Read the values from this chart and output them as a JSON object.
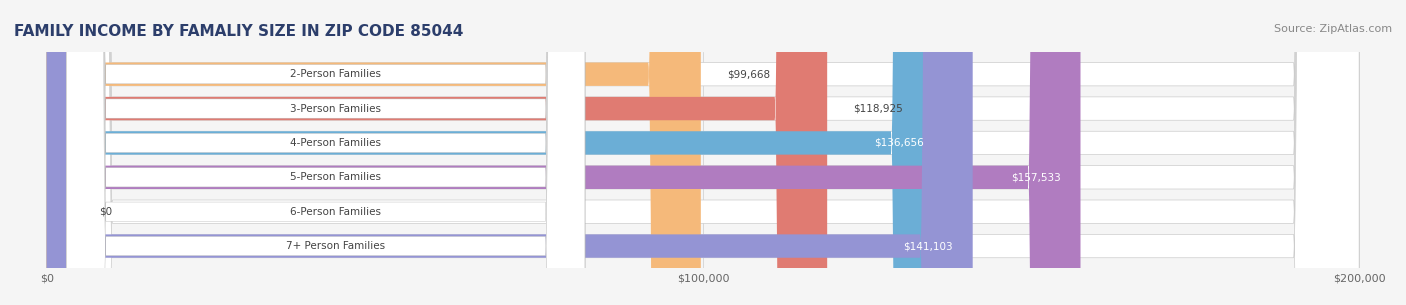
{
  "title": "FAMILY INCOME BY FAMALIY SIZE IN ZIP CODE 85044",
  "source": "Source: ZipAtlas.com",
  "categories": [
    "2-Person Families",
    "3-Person Families",
    "4-Person Families",
    "5-Person Families",
    "6-Person Families",
    "7+ Person Families"
  ],
  "values": [
    99668,
    118925,
    136656,
    157533,
    0,
    141103
  ],
  "bar_colors": [
    "#f5b97a",
    "#e07b72",
    "#6baed6",
    "#b07cc0",
    "#5bbcb0",
    "#9494d4"
  ],
  "bar_edge_colors": [
    "#e8a060",
    "#cc6060",
    "#4a9ac0",
    "#9060a8",
    "#40a090",
    "#7878c0"
  ],
  "value_labels": [
    "$99,668",
    "$118,925",
    "$136,656",
    "$157,533",
    "$0",
    "$141,103"
  ],
  "xlim": [
    0,
    200000
  ],
  "xticks": [
    0,
    100000,
    200000
  ],
  "xtick_labels": [
    "$0",
    "$100,000",
    "$200,000"
  ],
  "title_fontsize": 11,
  "title_color": "#2c3e6b",
  "source_fontsize": 8,
  "source_color": "#888888",
  "label_fontsize": 7.5,
  "value_fontsize": 7.5,
  "background_color": "#f5f5f5",
  "bar_bg_color": "#e8e8e8"
}
